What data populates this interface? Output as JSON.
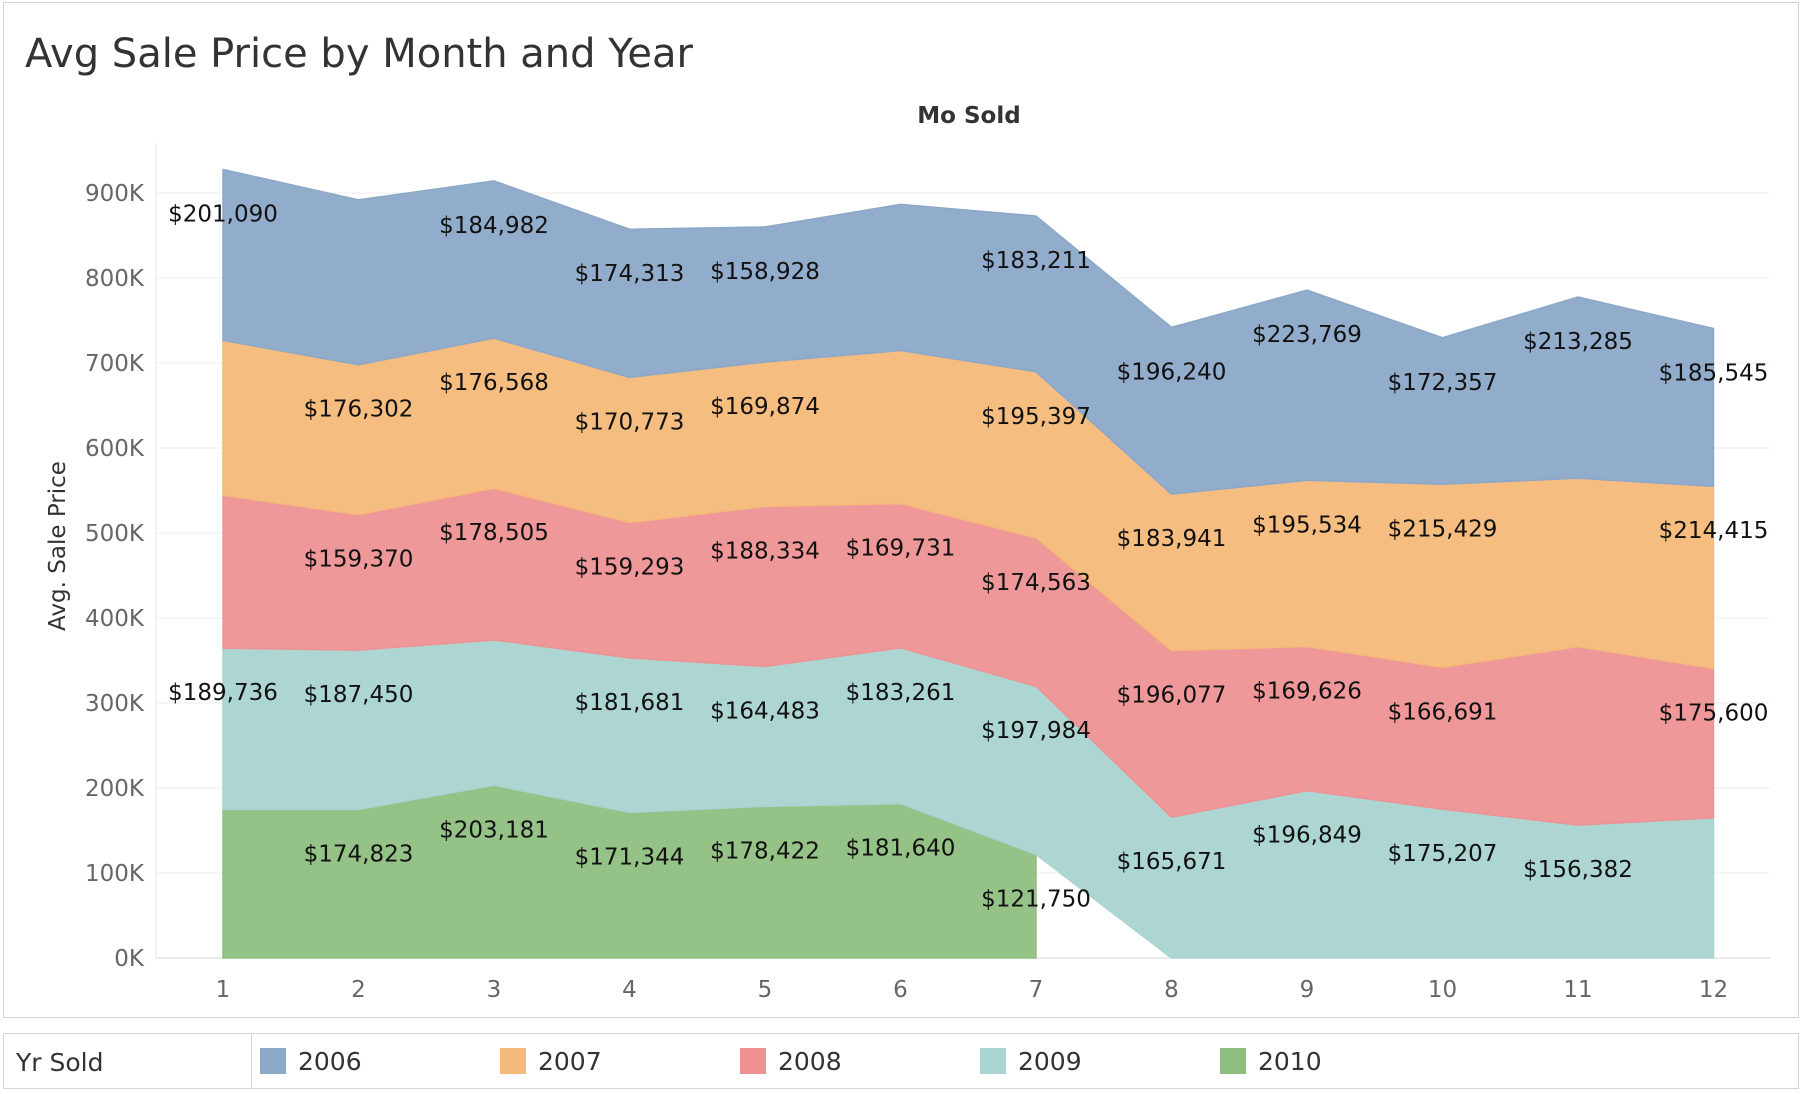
{
  "chart_data": {
    "type": "area",
    "stacked": true,
    "title": "Avg Sale Price by Month and Year",
    "column_header": "Mo Sold",
    "ylabel": "Avg. Sale Price",
    "ylim": [
      0,
      950000
    ],
    "y_ticks": [
      {
        "value": 0,
        "label": "0K"
      },
      {
        "value": 100000,
        "label": "100K"
      },
      {
        "value": 200000,
        "label": "200K"
      },
      {
        "value": 300000,
        "label": "300K"
      },
      {
        "value": 400000,
        "label": "400K"
      },
      {
        "value": 500000,
        "label": "500K"
      },
      {
        "value": 600000,
        "label": "600K"
      },
      {
        "value": 700000,
        "label": "700K"
      },
      {
        "value": 800000,
        "label": "800K"
      },
      {
        "value": 900000,
        "label": "900K"
      }
    ],
    "x": [
      1,
      2,
      3,
      4,
      5,
      6,
      7,
      8,
      9,
      10,
      11,
      12
    ],
    "grid": true,
    "legend_title": "Yr Sold",
    "legend_position": "bottom",
    "series": [
      {
        "name": "2010",
        "color": "#8fbf7f",
        "values": [
          174823,
          174823,
          203181,
          171344,
          178422,
          181640,
          121750,
          null,
          null,
          null,
          null,
          null
        ],
        "labels": [
          "",
          "$174,823",
          "$203,181",
          "$171,344",
          "$178,422",
          "$181,640",
          "$121,750",
          "",
          "",
          "",
          "",
          ""
        ]
      },
      {
        "name": "2009",
        "color": "#a9d4d1",
        "values": [
          189736,
          187450,
          171000,
          181681,
          164483,
          183261,
          197984,
          165671,
          196849,
          175207,
          156382,
          165000
        ],
        "labels": [
          "$189,736",
          "$187,450",
          "",
          "$181,681",
          "$164,483",
          "$183,261",
          "$197,984",
          "$165,671",
          "$196,849",
          "$175,207",
          "$156,382",
          ""
        ]
      },
      {
        "name": "2008",
        "color": "#ee9294",
        "values": [
          180000,
          159370,
          178505,
          159293,
          188334,
          169731,
          174563,
          196077,
          169626,
          166691,
          210000,
          175600
        ],
        "labels": [
          "",
          "$159,370",
          "$178,505",
          "$159,293",
          "$188,334",
          "$169,731",
          "$174,563",
          "$196,077",
          "$169,626",
          "$166,691",
          "",
          "$175,600"
        ]
      },
      {
        "name": "2007",
        "color": "#f5b979",
        "values": [
          182000,
          176302,
          176568,
          170773,
          169874,
          180000,
          195397,
          183941,
          195534,
          215429,
          198000,
          214415
        ],
        "labels": [
          "",
          "$176,302",
          "$176,568",
          "$170,773",
          "$169,874",
          "",
          "$195,397",
          "$183,941",
          "$195,534",
          "$215,429",
          "",
          "$214,415"
        ]
      },
      {
        "name": "2006",
        "color": "#8ca8c8",
        "values": [
          201090,
          194000,
          184982,
          174313,
          158928,
          172000,
          183211,
          196240,
          223769,
          172357,
          213285,
          185545
        ],
        "labels": [
          "$201,090",
          "",
          "$184,982",
          "$174,313",
          "$158,928",
          "",
          "$183,211",
          "$196,240",
          "$223,769",
          "$172,357",
          "$213,285",
          "$185,545"
        ]
      }
    ]
  },
  "legend": {
    "title": "Yr Sold",
    "items": [
      {
        "label": "2006",
        "color": "#8ca8c8"
      },
      {
        "label": "2007",
        "color": "#f5b979"
      },
      {
        "label": "2008",
        "color": "#ee9294"
      },
      {
        "label": "2009",
        "color": "#a9d4d1"
      },
      {
        "label": "2010",
        "color": "#8fbf7f"
      }
    ]
  }
}
